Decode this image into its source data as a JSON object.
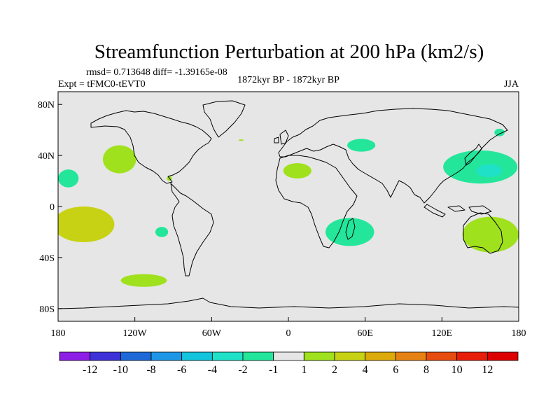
{
  "chart_data": {
    "type": "heatmap",
    "title": "Streamfunction Perturbation at 200 hPa (km2/s)",
    "stats_text": "rmsd= 0.713648 diff= -1.39165e-08",
    "left_label": "Expt = tFMC0-tEVT0",
    "center_label": "1872kyr BP - 1872kyr BP",
    "right_label": "JJA",
    "lon_range": [
      -180,
      180
    ],
    "lat_range": [
      -90,
      90
    ],
    "x_ticks": [
      {
        "lon": -180,
        "label": "180"
      },
      {
        "lon": -120,
        "label": "120W"
      },
      {
        "lon": -60,
        "label": "60W"
      },
      {
        "lon": 0,
        "label": "0"
      },
      {
        "lon": 60,
        "label": "60E"
      },
      {
        "lon": 120,
        "label": "120E"
      },
      {
        "lon": 180,
        "label": "180"
      }
    ],
    "y_ticks": [
      {
        "lat": 80,
        "label": "80N"
      },
      {
        "lat": 40,
        "label": "40N"
      },
      {
        "lat": 0,
        "label": "0"
      },
      {
        "lat": -40,
        "label": "40S"
      },
      {
        "lat": -80,
        "label": "80S"
      }
    ],
    "colorbar": {
      "labels": [
        "-12",
        "-10",
        "-8",
        "-6",
        "-4",
        "-2",
        "-1",
        "1",
        "2",
        "4",
        "6",
        "8",
        "10",
        "12"
      ],
      "colors": [
        "#8c1ee6",
        "#3c32d7",
        "#1e69d7",
        "#1e96e6",
        "#14c3dc",
        "#1ee1c8",
        "#23e69b",
        "#e6e6e6",
        "#a0e11e",
        "#c8d214",
        "#dcaa0a",
        "#e68214",
        "#e64b0f",
        "#e61e0a",
        "#dc0000"
      ]
    },
    "background_color": "#e6e6e6",
    "regions": [
      {
        "name": "north-pacific-east-positive",
        "lon": -132,
        "lat": 37,
        "rlon": 13,
        "rlat": 11,
        "value": 1.5
      },
      {
        "name": "east-pacific-north-negative",
        "lon": -172,
        "lat": 22,
        "rlon": 8,
        "rlat": 7,
        "value": -1.5
      },
      {
        "name": "south-pacific-positive",
        "lon": -160,
        "lat": -14,
        "rlon": 24,
        "rlat": 14,
        "value": 2.5
      },
      {
        "name": "south-pacific-core",
        "lon": -158,
        "lat": -15,
        "rlon": 9,
        "rlat": 5,
        "value": 3.2
      },
      {
        "name": "east-pacific-south-negative",
        "lon": -99,
        "lat": -20,
        "rlon": 5,
        "rlat": 4,
        "value": -1.5
      },
      {
        "name": "south-pacific-far-positive",
        "lon": -113,
        "lat": -58,
        "rlon": 18,
        "rlat": 5,
        "value": 1.5
      },
      {
        "name": "mexico-positive",
        "lon": -93,
        "lat": 22,
        "rlon": 2,
        "rlat": 2,
        "value": 1.5
      },
      {
        "name": "north-atlantic-positive",
        "lon": -37,
        "lat": 52,
        "rlon": 2,
        "rlat": 0.6,
        "value": 1.5
      },
      {
        "name": "north-africa-positive",
        "lon": 7,
        "lat": 28,
        "rlon": 11,
        "rlat": 6,
        "value": 1.5
      },
      {
        "name": "central-asia-negative",
        "lon": 57,
        "lat": 48,
        "rlon": 11,
        "rlat": 5,
        "value": -1.5
      },
      {
        "name": "southern-africa-negative",
        "lon": 48,
        "lat": -20,
        "rlon": 19,
        "rlat": 11,
        "value": -1.5
      },
      {
        "name": "north-pacific-west-negative",
        "lon": 150,
        "lat": 31,
        "rlon": 29,
        "rlat": 13,
        "value": -1.5
      },
      {
        "name": "north-pacific-west-core",
        "lon": 157,
        "lat": 28,
        "rlon": 10,
        "rlat": 5,
        "value": -2.5
      },
      {
        "name": "bering-negative",
        "lon": 165,
        "lat": 58,
        "rlon": 4,
        "rlat": 3,
        "value": -1.5
      },
      {
        "name": "australia-positive",
        "lon": 158,
        "lat": -22,
        "rlon": 22,
        "rlat": 14,
        "value": 1.5
      }
    ]
  }
}
